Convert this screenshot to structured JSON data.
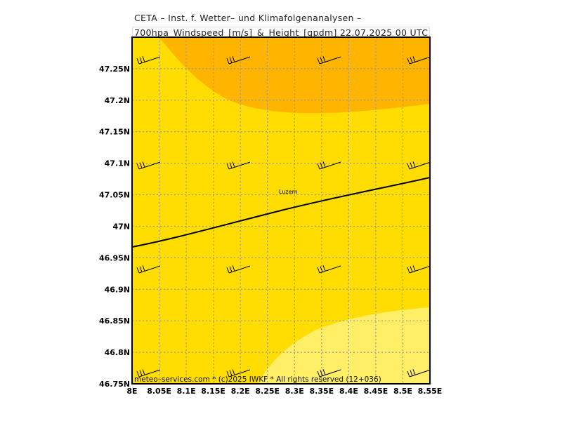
{
  "header": {
    "line1": "CETA – Inst. f. Wetter– und Klimafolgenanalysen –",
    "line2": "700hpa_Windspeed_[m/s]_&_Height_[gpdm] 22.07.2025 00 UTC"
  },
  "map": {
    "lon_range": [
      8.0,
      8.55
    ],
    "lat_range": [
      46.75,
      47.3
    ],
    "x_ticks": [
      "8E",
      "8.05E",
      "8.1E",
      "8.15E",
      "8.2E",
      "8.25E",
      "8.3E",
      "8.35E",
      "8.4E",
      "8.45E",
      "8.5E",
      "8.55E"
    ],
    "y_ticks": [
      "46.75N",
      "46.8N",
      "46.85N",
      "46.9N",
      "46.95N",
      "47N",
      "47.05N",
      "47.1N",
      "47.15N",
      "47.2N",
      "47.25N"
    ],
    "city": {
      "name": "Luzern",
      "lon": 8.3,
      "lat": 47.05
    },
    "colors": {
      "low": "#ffee66",
      "mid": "#ffdd00",
      "high": "#ffb400",
      "grid": "#999999"
    },
    "footer": "meteo–services.com * (c)2025 IWKF * All rights reserved (12+036)"
  }
}
